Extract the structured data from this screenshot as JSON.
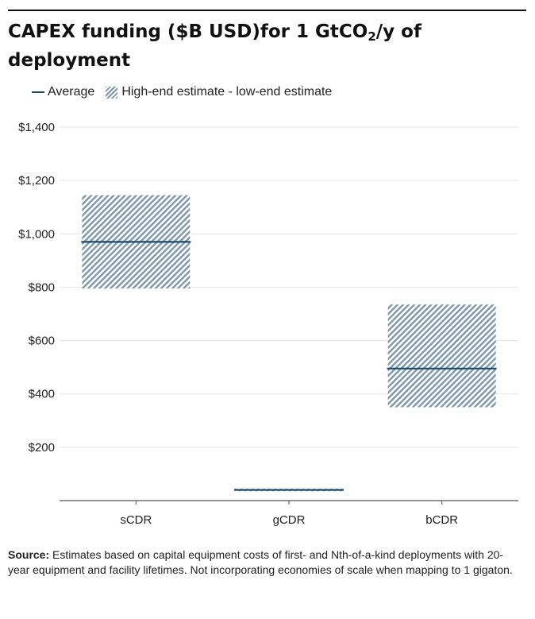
{
  "title": {
    "main": "CAPEX funding ($B USD)for 1 GtCO",
    "subscript": "2",
    "suffix": "/y of deployment"
  },
  "legend": {
    "average_label": "Average",
    "range_label": "High-end estimate - low-end estimate"
  },
  "colors": {
    "average": "#1b4a6b",
    "range_hatch": "#7d97ad",
    "grid": "#e6e6e6",
    "axis": "#555555"
  },
  "chart_data": {
    "type": "bar",
    "categories": [
      "sCDR",
      "gCDR",
      "bCDR"
    ],
    "series": [
      {
        "name": "Average",
        "values": [
          970,
          40,
          495
        ]
      },
      {
        "name": "High-end estimate - low-end estimate",
        "low": [
          795,
          35,
          350
        ],
        "high": [
          1145,
          45,
          735
        ]
      }
    ],
    "yticks": [
      200,
      400,
      600,
      800,
      1000,
      1200,
      1400
    ],
    "ytick_labels": [
      "$200",
      "$400",
      "$600",
      "$800",
      "$1,000",
      "$1,200",
      "$1,400"
    ],
    "ylim": [
      0,
      1400
    ],
    "grid": true,
    "legend_position": "top-left"
  },
  "footnote": {
    "label": "Source:",
    "text": " Estimates based on capital equipment costs of first- and Nth-of-a-kind deployments with 20-year equipment and facility lifetimes. Not incorporating economies of scale when mapping to 1 gigaton."
  }
}
